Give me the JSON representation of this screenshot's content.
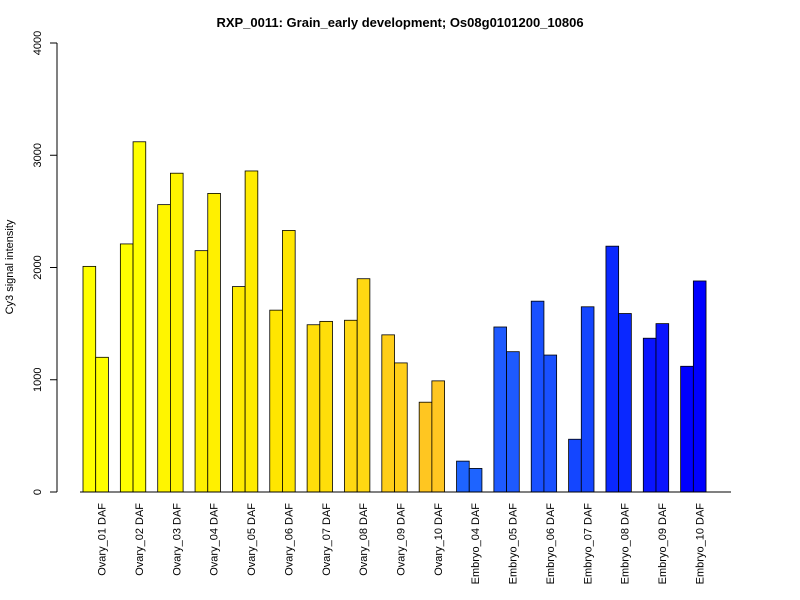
{
  "chart_data": {
    "type": "bar",
    "title": "RXP_0011: Grain_early development; Os08g0101200_10806",
    "xlabel": "",
    "ylabel": "Cy3 signal intensity",
    "ylim": [
      0,
      4000
    ],
    "yticks": [
      "0",
      "1000",
      "2000",
      "3000",
      "4000"
    ],
    "grid": false,
    "categories": [
      "Ovary_01 DAF",
      "Ovary_02 DAF",
      "Ovary_03 DAF",
      "Ovary_04 DAF",
      "Ovary_05 DAF",
      "Ovary_06 DAF",
      "Ovary_07 DAF",
      "Ovary_08 DAF",
      "Ovary_09 DAF",
      "Ovary_10 DAF",
      "Embryo_04 DAF",
      "Embryo_05 DAF",
      "Embryo_06 DAF",
      "Embryo_07 DAF",
      "Embryo_08 DAF",
      "Embryo_09 DAF",
      "Embryo_10 DAF"
    ],
    "series": [
      {
        "values": [
          2010,
          2210,
          2560,
          2150,
          1830,
          1620,
          1490,
          1530,
          1400,
          800,
          275,
          1470,
          1700,
          470,
          2190,
          1370,
          1120
        ]
      },
      {
        "values": [
          1200,
          3120,
          2840,
          2660,
          2860,
          2330,
          1520,
          1900,
          1150,
          990,
          210,
          1250,
          1220,
          1650,
          1590,
          1500,
          1880
        ]
      }
    ],
    "colors": [
      "#FFFF00",
      "#FFFF00",
      "#FFF500",
      "#FFF000",
      "#FFEB00",
      "#FFE600",
      "#FFDE0A",
      "#FFD812",
      "#FFCE18",
      "#FFC621",
      "#1E64FF",
      "#1E5AFF",
      "#1950FF",
      "#1446FF",
      "#0A28FF",
      "#0A14FF",
      "#0000FF"
    ]
  }
}
